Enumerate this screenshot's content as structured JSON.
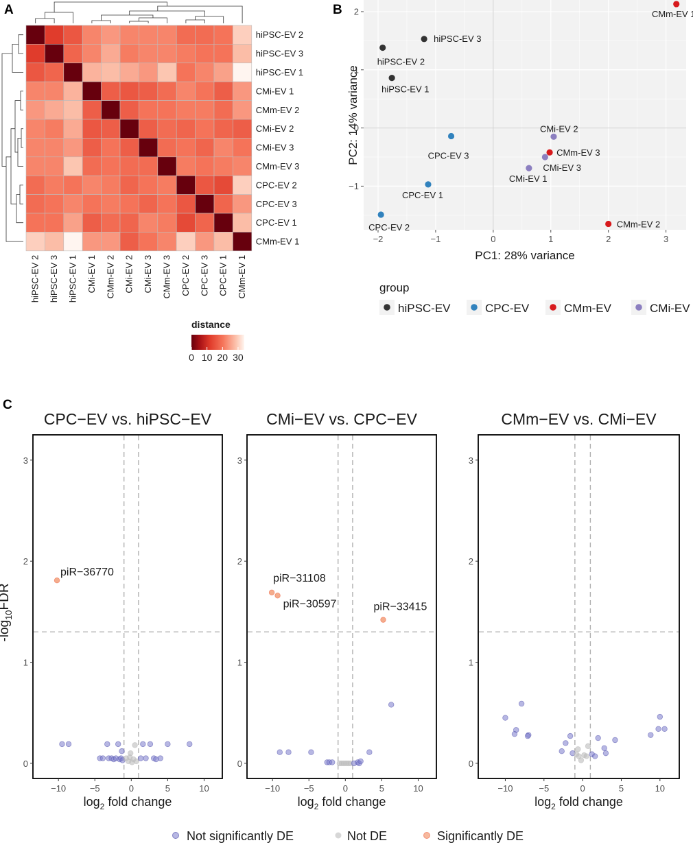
{
  "panels": {
    "a": "A",
    "b": "B",
    "c": "C"
  },
  "colors": {
    "hiPSC-EV": "#333333",
    "CPC-EV": "#3182bd",
    "CMm-EV": "#d7191c",
    "CMi-EV": "#8c7fc0",
    "not_sig": "#7b7bcc",
    "not_de": "#bdbdbd",
    "sig": "#f08a5d",
    "heat_low": "#67000d",
    "heat_mid": "#ef6548",
    "heat_high": "#fff5f0"
  },
  "chart_data": [
    {
      "type": "heatmap",
      "title": "",
      "samples": [
        "hiPSC-EV 2",
        "hiPSC-EV 3",
        "hiPSC-EV 1",
        "CMi-EV 1",
        "CMm-EV 2",
        "CMi-EV 2",
        "CMi-EV 3",
        "CMm-EV 3",
        "CPC-EV 2",
        "CPC-EV 3",
        "CPC-EV 1",
        "CMm-EV 1"
      ],
      "values": [
        [
          0,
          12,
          16,
          22,
          24,
          22,
          22,
          22,
          19,
          19,
          20,
          30
        ],
        [
          12,
          0,
          18,
          22,
          26,
          21,
          22,
          22,
          21,
          20,
          20,
          28
        ],
        [
          16,
          18,
          0,
          27,
          28,
          26,
          24,
          29,
          20,
          22,
          25,
          34
        ],
        [
          22,
          22,
          27,
          0,
          17,
          16,
          17,
          19,
          22,
          20,
          17,
          24
        ],
        [
          24,
          26,
          28,
          17,
          0,
          17,
          20,
          20,
          21,
          21,
          19,
          24
        ],
        [
          22,
          21,
          26,
          16,
          17,
          0,
          17,
          19,
          18,
          20,
          18,
          17
        ],
        [
          22,
          22,
          24,
          17,
          20,
          17,
          0,
          19,
          20,
          18,
          22,
          20
        ],
        [
          22,
          22,
          29,
          19,
          20,
          19,
          19,
          0,
          21,
          20,
          21,
          22
        ],
        [
          19,
          21,
          20,
          22,
          21,
          18,
          20,
          21,
          0,
          16,
          14,
          30
        ],
        [
          19,
          20,
          22,
          20,
          21,
          20,
          18,
          20,
          16,
          0,
          18,
          24
        ],
        [
          20,
          20,
          25,
          17,
          19,
          18,
          22,
          21,
          14,
          18,
          0,
          28
        ],
        [
          30,
          28,
          34,
          24,
          24,
          17,
          20,
          22,
          30,
          24,
          28,
          0
        ]
      ],
      "legend": {
        "title": "distance",
        "ticks": [
          "0",
          "10",
          "20",
          "30"
        ],
        "range": [
          0,
          34
        ]
      }
    },
    {
      "type": "scatter",
      "title": "",
      "xlabel": "PC1: 28% variance",
      "ylabel": "PC2: 14% variance",
      "xlim": [
        -2.25,
        3.35
      ],
      "ylim": [
        -1.75,
        2.2
      ],
      "xticks": [
        -2,
        -1,
        0,
        1,
        2,
        3
      ],
      "yticks": [
        -1,
        0,
        1,
        2
      ],
      "points": [
        {
          "label": "CMm-EV 1",
          "group": "CMm-EV",
          "x": 3.18,
          "y": 2.13
        },
        {
          "label": "hiPSC-EV 3",
          "group": "hiPSC-EV",
          "x": -1.2,
          "y": 1.53
        },
        {
          "label": "hiPSC-EV 2",
          "group": "hiPSC-EV",
          "x": -1.92,
          "y": 1.38
        },
        {
          "label": "hiPSC-EV 1",
          "group": "hiPSC-EV",
          "x": -1.76,
          "y": 0.86
        },
        {
          "label": "CPC-EV 3",
          "group": "CPC-EV",
          "x": -0.73,
          "y": -0.14
        },
        {
          "label": "CMi-EV 2",
          "group": "CMi-EV",
          "x": 1.05,
          "y": -0.15
        },
        {
          "label": "CMm-EV 3",
          "group": "CMm-EV",
          "x": 0.98,
          "y": -0.42
        },
        {
          "label": "CMi-EV 3",
          "group": "CMi-EV",
          "x": 0.9,
          "y": -0.5
        },
        {
          "label": "CMi-EV 1",
          "group": "CMi-EV",
          "x": 0.62,
          "y": -0.69
        },
        {
          "label": "CPC-EV 1",
          "group": "CPC-EV",
          "x": -1.13,
          "y": -0.97
        },
        {
          "label": "CPC-EV 2",
          "group": "CPC-EV",
          "x": -1.95,
          "y": -1.49
        },
        {
          "label": "CMm-EV 2",
          "group": "CMm-EV",
          "x": 2.0,
          "y": -1.65
        }
      ],
      "legend": {
        "title": "group",
        "entries": [
          "hiPSC-EV",
          "CPC-EV",
          "CMm-EV",
          "CMi-EV"
        ]
      }
    },
    {
      "type": "scatter",
      "title": "CPC−EV vs. hiPSC−EV",
      "xlabel": "log2 fold change",
      "ylabel": "-log10FDR",
      "xlim": [
        -13.5,
        12.5
      ],
      "ylim": [
        -0.15,
        3.25
      ],
      "xticks": [
        -10,
        -5,
        0,
        5,
        10
      ],
      "yticks": [
        0,
        1,
        2,
        3
      ],
      "threshold_y": 1.3,
      "threshold_x": [
        -1,
        1
      ],
      "points": [
        {
          "x": -10.2,
          "y": 1.81,
          "cat": "sig",
          "label": "piR−36770"
        },
        {
          "x": -9.5,
          "y": 0.19,
          "cat": "not_sig"
        },
        {
          "x": -8.6,
          "y": 0.19,
          "cat": "not_sig"
        },
        {
          "x": -4.3,
          "y": 0.05,
          "cat": "not_sig"
        },
        {
          "x": -3.9,
          "y": 0.05,
          "cat": "not_sig"
        },
        {
          "x": -3.3,
          "y": 0.19,
          "cat": "not_sig"
        },
        {
          "x": -3.1,
          "y": 0.05,
          "cat": "not_sig"
        },
        {
          "x": -2.7,
          "y": 0.05,
          "cat": "not_sig"
        },
        {
          "x": -2.4,
          "y": 0.04,
          "cat": "not_sig"
        },
        {
          "x": -2.1,
          "y": 0.05,
          "cat": "not_sig"
        },
        {
          "x": -1.8,
          "y": 0.19,
          "cat": "not_sig"
        },
        {
          "x": -1.6,
          "y": 0.04,
          "cat": "not_sig"
        },
        {
          "x": -1.4,
          "y": 0.05,
          "cat": "not_sig"
        },
        {
          "x": -1.2,
          "y": 0.03,
          "cat": "not_sig"
        },
        {
          "x": -1.3,
          "y": 0.12,
          "cat": "not_sig"
        },
        {
          "x": -0.7,
          "y": 0.05,
          "cat": "not_de"
        },
        {
          "x": -0.4,
          "y": 0.02,
          "cat": "not_de"
        },
        {
          "x": -0.2,
          "y": 0.06,
          "cat": "not_de"
        },
        {
          "x": 0.1,
          "y": 0.01,
          "cat": "not_de"
        },
        {
          "x": 0.3,
          "y": 0.04,
          "cat": "not_de"
        },
        {
          "x": 0.5,
          "y": 0.18,
          "cat": "not_de"
        },
        {
          "x": 0.7,
          "y": 0.02,
          "cat": "not_de"
        },
        {
          "x": -0.1,
          "y": 0.1,
          "cat": "not_de"
        },
        {
          "x": 1.3,
          "y": 0.05,
          "cat": "not_sig"
        },
        {
          "x": 1.6,
          "y": 0.19,
          "cat": "not_sig"
        },
        {
          "x": 2.0,
          "y": 0.05,
          "cat": "not_sig"
        },
        {
          "x": 2.6,
          "y": 0.19,
          "cat": "not_sig"
        },
        {
          "x": 3.1,
          "y": 0.05,
          "cat": "not_sig"
        },
        {
          "x": 3.4,
          "y": 0.04,
          "cat": "not_sig"
        },
        {
          "x": 4.0,
          "y": 0.05,
          "cat": "not_sig"
        },
        {
          "x": 5.0,
          "y": 0.19,
          "cat": "not_sig"
        },
        {
          "x": 8.0,
          "y": 0.19,
          "cat": "not_sig"
        }
      ]
    },
    {
      "type": "scatter",
      "title": "CMi−EV vs. CPC−EV",
      "xlabel": "log2 fold change",
      "ylabel": "",
      "xlim": [
        -13.5,
        12.5
      ],
      "ylim": [
        -0.15,
        3.25
      ],
      "xticks": [
        -10,
        -5,
        0,
        5,
        10
      ],
      "yticks": [
        0,
        1,
        2,
        3
      ],
      "threshold_y": 1.3,
      "threshold_x": [
        -1,
        1
      ],
      "points": [
        {
          "x": -10.1,
          "y": 1.69,
          "cat": "sig",
          "label": "piR−31108"
        },
        {
          "x": -9.3,
          "y": 1.66,
          "cat": "sig",
          "label": "piR−30597"
        },
        {
          "x": 5.2,
          "y": 1.42,
          "cat": "sig",
          "label": "piR−33415"
        },
        {
          "x": 6.3,
          "y": 0.58,
          "cat": "not_sig"
        },
        {
          "x": -9.0,
          "y": 0.11,
          "cat": "not_sig"
        },
        {
          "x": -7.8,
          "y": 0.11,
          "cat": "not_sig"
        },
        {
          "x": -4.7,
          "y": 0.11,
          "cat": "not_sig"
        },
        {
          "x": -2.5,
          "y": 0.01,
          "cat": "not_sig"
        },
        {
          "x": -2.2,
          "y": 0.01,
          "cat": "not_sig"
        },
        {
          "x": -1.8,
          "y": 0.01,
          "cat": "not_sig"
        },
        {
          "x": -0.8,
          "y": 0.0,
          "cat": "not_de"
        },
        {
          "x": -0.5,
          "y": 0.0,
          "cat": "not_de"
        },
        {
          "x": -0.2,
          "y": 0.0,
          "cat": "not_de"
        },
        {
          "x": 0.1,
          "y": 0.0,
          "cat": "not_de"
        },
        {
          "x": 0.4,
          "y": 0.0,
          "cat": "not_de"
        },
        {
          "x": 0.7,
          "y": 0.0,
          "cat": "not_de"
        },
        {
          "x": 1.2,
          "y": 0.0,
          "cat": "not_sig"
        },
        {
          "x": 1.7,
          "y": 0.01,
          "cat": "not_sig"
        },
        {
          "x": 1.9,
          "y": 0.0,
          "cat": "not_sig"
        },
        {
          "x": 2.1,
          "y": 0.02,
          "cat": "not_sig"
        },
        {
          "x": 3.3,
          "y": 0.11,
          "cat": "not_sig"
        }
      ]
    },
    {
      "type": "scatter",
      "title": "CMm−EV vs. CMi−EV",
      "xlabel": "log2 fold change",
      "ylabel": "",
      "xlim": [
        -13.5,
        12.5
      ],
      "ylim": [
        -0.15,
        3.25
      ],
      "xticks": [
        -10,
        -5,
        0,
        5,
        10
      ],
      "yticks": [
        0,
        1,
        2,
        3
      ],
      "threshold_y": 1.3,
      "threshold_x": [
        -1,
        1
      ],
      "points": [
        {
          "x": -10.0,
          "y": 0.45,
          "cat": "not_sig"
        },
        {
          "x": -8.6,
          "y": 0.33,
          "cat": "not_sig"
        },
        {
          "x": -8.8,
          "y": 0.29,
          "cat": "not_sig"
        },
        {
          "x": -7.9,
          "y": 0.59,
          "cat": "not_sig"
        },
        {
          "x": -7.0,
          "y": 0.28,
          "cat": "not_sig"
        },
        {
          "x": -7.1,
          "y": 0.27,
          "cat": "not_sig"
        },
        {
          "x": -2.7,
          "y": 0.12,
          "cat": "not_sig"
        },
        {
          "x": -2.2,
          "y": 0.2,
          "cat": "not_sig"
        },
        {
          "x": -1.6,
          "y": 0.27,
          "cat": "not_sig"
        },
        {
          "x": -1.3,
          "y": 0.1,
          "cat": "not_sig"
        },
        {
          "x": -0.8,
          "y": 0.09,
          "cat": "not_de"
        },
        {
          "x": -0.5,
          "y": 0.07,
          "cat": "not_de"
        },
        {
          "x": -0.2,
          "y": 0.03,
          "cat": "not_de"
        },
        {
          "x": 0.2,
          "y": 0.08,
          "cat": "not_de"
        },
        {
          "x": 0.5,
          "y": 0.07,
          "cat": "not_de"
        },
        {
          "x": -0.6,
          "y": 0.14,
          "cat": "not_de"
        },
        {
          "x": 0.7,
          "y": 0.17,
          "cat": "not_de"
        },
        {
          "x": 1.2,
          "y": 0.09,
          "cat": "not_sig"
        },
        {
          "x": 1.6,
          "y": 0.07,
          "cat": "not_sig"
        },
        {
          "x": 2.0,
          "y": 0.25,
          "cat": "not_sig"
        },
        {
          "x": 2.8,
          "y": 0.15,
          "cat": "not_sig"
        },
        {
          "x": 3.0,
          "y": 0.1,
          "cat": "not_sig"
        },
        {
          "x": 4.2,
          "y": 0.23,
          "cat": "not_sig"
        },
        {
          "x": 8.8,
          "y": 0.28,
          "cat": "not_sig"
        },
        {
          "x": 9.8,
          "y": 0.34,
          "cat": "not_sig"
        },
        {
          "x": 10.0,
          "y": 0.46,
          "cat": "not_sig"
        },
        {
          "x": 10.6,
          "y": 0.34,
          "cat": "not_sig"
        }
      ]
    }
  ],
  "volcano_legend": {
    "not_sig": "Not significantly DE",
    "not_de": "Not DE",
    "sig": "Significantly DE"
  }
}
